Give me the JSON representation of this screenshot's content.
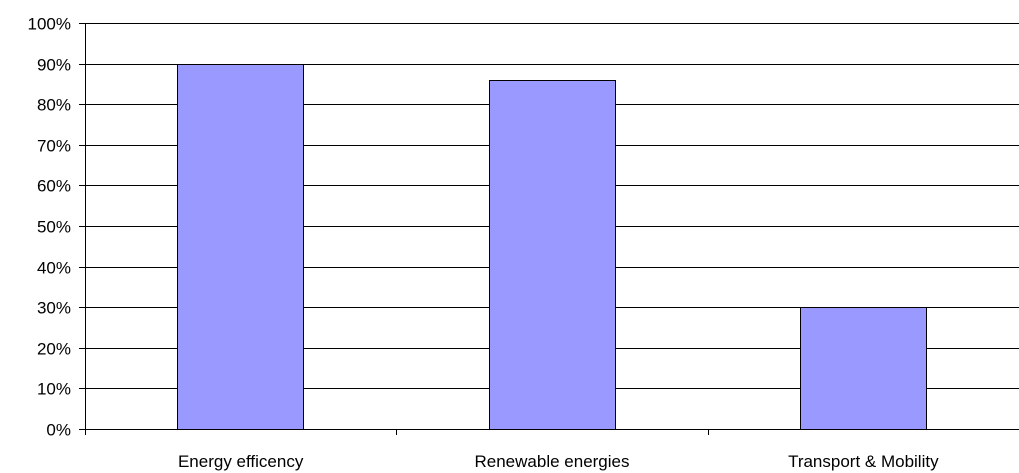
{
  "chart_data": {
    "type": "bar",
    "categories": [
      "Energy efficency",
      "Renewable energies",
      "Transport & Mobility"
    ],
    "values": [
      90,
      86,
      30
    ],
    "ylim": [
      0,
      100
    ],
    "yticks": [
      0,
      10,
      20,
      30,
      40,
      50,
      60,
      70,
      80,
      90,
      100
    ],
    "ytick_labels": [
      "0%",
      "10%",
      "20%",
      "30%",
      "40%",
      "50%",
      "60%",
      "70%",
      "80%",
      "90%",
      "100%"
    ],
    "grid": true,
    "legend": false,
    "bar_color": "#9999ff"
  }
}
